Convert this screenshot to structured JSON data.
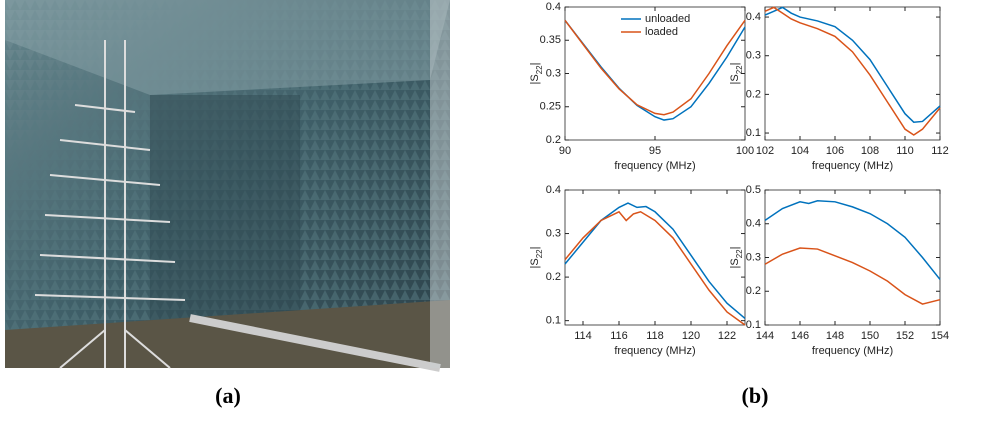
{
  "captions": [
    "(a)",
    "(b)"
  ],
  "chart_data": [
    {
      "type": "line",
      "xlabel": "frequency (MHz)",
      "ylabel": "|S22|",
      "xlim": [
        90,
        100
      ],
      "xticks": [
        90,
        95,
        100
      ],
      "ylim": [
        0.2,
        0.4
      ],
      "yticks": [
        0.2,
        0.25,
        0.3,
        0.35,
        0.4
      ],
      "legend": "upper center",
      "series": [
        {
          "name": "unloaded",
          "color": "#0072bd",
          "x": [
            90,
            91,
            92,
            93,
            94,
            95,
            95.5,
            96,
            97,
            98,
            99,
            100
          ],
          "values": [
            0.38,
            0.345,
            0.31,
            0.278,
            0.252,
            0.235,
            0.23,
            0.232,
            0.25,
            0.285,
            0.325,
            0.37
          ]
        },
        {
          "name": "loaded",
          "color": "#d95319",
          "x": [
            90,
            91,
            92,
            93,
            94,
            95,
            95.5,
            96,
            97,
            98,
            99,
            100
          ],
          "values": [
            0.38,
            0.344,
            0.308,
            0.277,
            0.253,
            0.24,
            0.238,
            0.242,
            0.262,
            0.3,
            0.342,
            0.38
          ]
        }
      ]
    },
    {
      "type": "line",
      "xlabel": "frequency (MHz)",
      "ylabel": "|S22|",
      "xlim": [
        102,
        112
      ],
      "xticks": [
        102,
        104,
        106,
        108,
        110,
        112
      ],
      "ylim": [
        0.082,
        0.426
      ],
      "yticks": [
        0.1,
        0.2,
        0.3,
        0.4
      ],
      "series": [
        {
          "color": "#0072bd",
          "x": [
            102,
            102.5,
            103,
            103.5,
            104,
            105,
            106,
            107,
            108,
            109,
            110,
            110.5,
            111,
            112
          ],
          "values": [
            0.405,
            0.415,
            0.425,
            0.41,
            0.4,
            0.39,
            0.375,
            0.34,
            0.29,
            0.22,
            0.15,
            0.128,
            0.13,
            0.17
          ]
        },
        {
          "color": "#d95319",
          "x": [
            102,
            102.5,
            103,
            103.5,
            104,
            105,
            106,
            107,
            108,
            109,
            110,
            110.5,
            111,
            112
          ],
          "values": [
            0.415,
            0.425,
            0.41,
            0.395,
            0.385,
            0.37,
            0.35,
            0.31,
            0.25,
            0.18,
            0.11,
            0.095,
            0.11,
            0.165
          ]
        }
      ]
    },
    {
      "type": "line",
      "xlabel": "frequency (MHz)",
      "ylabel": "|S22|",
      "xlim": [
        113,
        123
      ],
      "xticks": [
        114,
        116,
        118,
        120,
        122
      ],
      "ylim": [
        0.09,
        0.4
      ],
      "yticks": [
        0.1,
        0.2,
        0.3,
        0.4
      ],
      "series": [
        {
          "color": "#0072bd",
          "x": [
            113,
            114,
            115,
            116,
            116.5,
            117,
            117.5,
            118,
            119,
            120,
            121,
            122,
            123
          ],
          "values": [
            0.23,
            0.28,
            0.33,
            0.36,
            0.37,
            0.36,
            0.362,
            0.35,
            0.31,
            0.25,
            0.19,
            0.14,
            0.105
          ]
        },
        {
          "color": "#d95319",
          "x": [
            113,
            114,
            115,
            116,
            116.4,
            116.8,
            117.2,
            118,
            119,
            120,
            121,
            122,
            123
          ],
          "values": [
            0.24,
            0.29,
            0.33,
            0.35,
            0.33,
            0.345,
            0.35,
            0.33,
            0.29,
            0.23,
            0.17,
            0.12,
            0.09
          ]
        }
      ]
    },
    {
      "type": "line",
      "xlabel": "frequency (MHz)",
      "ylabel": "|S22|",
      "xlim": [
        144,
        154
      ],
      "xticks": [
        144,
        146,
        148,
        150,
        152,
        154
      ],
      "ylim": [
        0.1,
        0.5
      ],
      "yticks": [
        0.1,
        0.2,
        0.3,
        0.4,
        0.5
      ],
      "series": [
        {
          "color": "#0072bd",
          "x": [
            144,
            145,
            146,
            146.5,
            147,
            148,
            149,
            150,
            151,
            152,
            153,
            154
          ],
          "values": [
            0.41,
            0.445,
            0.465,
            0.46,
            0.468,
            0.465,
            0.45,
            0.43,
            0.4,
            0.36,
            0.3,
            0.235
          ]
        },
        {
          "color": "#d95319",
          "x": [
            144,
            145,
            146,
            147,
            148,
            149,
            150,
            151,
            152,
            153,
            154
          ],
          "values": [
            0.28,
            0.31,
            0.328,
            0.325,
            0.305,
            0.285,
            0.26,
            0.23,
            0.19,
            0.162,
            0.175
          ]
        }
      ]
    }
  ]
}
